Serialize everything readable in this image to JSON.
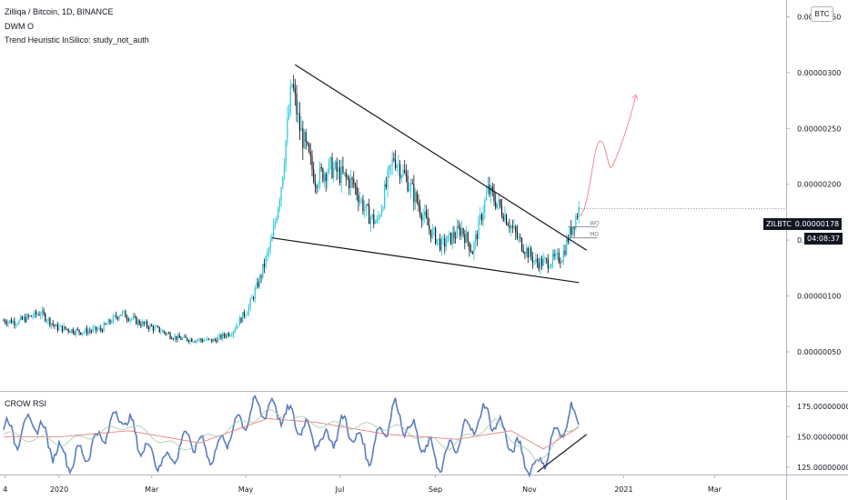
{
  "header": {
    "title": "Zilliqa / Bitcoin, 1D, BINANCE",
    "indicator_1": "DWM O",
    "indicator_2": "Trend Heuristic InSilico: study_not_auth"
  },
  "currency_badge": "BTC",
  "price_tag": {
    "symbol": "ZILBTC",
    "price": "0.00000178",
    "countdown": "04:08:37"
  },
  "rsi_panel": {
    "title": "CROW RSI"
  },
  "annotations": {
    "wo": "WO",
    "mo": "MO"
  },
  "colors": {
    "up": "#26c6da",
    "down": "#131722",
    "rsi_main": "#5a7dbf",
    "rsi_signal_red": "#e57373",
    "rsi_signal_green": "#a5c8a5",
    "forecast": "#f28b9b",
    "trendline": "#131722"
  },
  "chart_data": [
    {
      "type": "candlestick",
      "title": "Zilliqa / Bitcoin, 1D, BINANCE",
      "x_ticks": [
        "4",
        "2020",
        "Mar",
        "May",
        "Jul",
        "Sep",
        "Nov",
        "2021",
        "Mar"
      ],
      "y_ticks": [
        "0.00000350",
        "0.00000300",
        "0.00000250",
        "0.00000200",
        "0.00000150",
        "0.00000100",
        "0.00000050"
      ],
      "ylim": [
        1.5e-07,
        3.65e-06
      ],
      "series_anchors_price": [
        [
          "2019-11-26",
          7.8e-07
        ],
        [
          "2019-12-05",
          7.7e-07
        ],
        [
          "2019-12-20",
          8.5e-07
        ],
        [
          "2019-12-30",
          7.2e-07
        ],
        [
          "2020-01-15",
          6.8e-07
        ],
        [
          "2020-01-28",
          7e-07
        ],
        [
          "2020-02-10",
          8.5e-07
        ],
        [
          "2020-02-22",
          7.6e-07
        ],
        [
          "2020-03-05",
          7e-07
        ],
        [
          "2020-03-18",
          6.2e-07
        ],
        [
          "2020-04-10",
          6e-07
        ],
        [
          "2020-04-22",
          6.8e-07
        ],
        [
          "2020-05-03",
          9e-07
        ],
        [
          "2020-05-10",
          1.15e-06
        ],
        [
          "2020-05-18",
          1.5e-06
        ],
        [
          "2020-05-24",
          2e-06
        ],
        [
          "2020-05-31",
          2.9e-06
        ],
        [
          "2020-06-05",
          2.5e-06
        ],
        [
          "2020-06-15",
          2.05e-06
        ],
        [
          "2020-06-25",
          2.15e-06
        ],
        [
          "2020-07-10",
          2e-06
        ],
        [
          "2020-07-18",
          1.75e-06
        ],
        [
          "2020-07-25",
          1.65e-06
        ],
        [
          "2020-08-05",
          2.25e-06
        ],
        [
          "2020-08-15",
          2e-06
        ],
        [
          "2020-08-28",
          1.6e-06
        ],
        [
          "2020-09-05",
          1.45e-06
        ],
        [
          "2020-09-18",
          1.6e-06
        ],
        [
          "2020-09-25",
          1.4e-06
        ],
        [
          "2020-10-05",
          1.95e-06
        ],
        [
          "2020-10-15",
          1.75e-06
        ],
        [
          "2020-10-25",
          1.5e-06
        ],
        [
          "2020-11-05",
          1.3e-06
        ],
        [
          "2020-11-12",
          1.3e-06
        ],
        [
          "2020-11-22",
          1.35e-06
        ],
        [
          "2020-11-28",
          1.6e-06
        ],
        [
          "2020-12-03",
          1.78e-06
        ]
      ],
      "trendlines": [
        {
          "name": "upper",
          "from": [
            "2020-06-02",
            3.07e-06
          ],
          "to": [
            "2020-12-08",
            1.41e-06
          ]
        },
        {
          "name": "lower",
          "from": [
            "2020-05-18",
            1.52e-06
          ],
          "to": [
            "2020-12-03",
            1.12e-06
          ]
        }
      ],
      "levels": [
        {
          "label": "WO",
          "value": 1.62e-06
        },
        {
          "label": "MO",
          "value": 1.52e-06
        }
      ]
    },
    {
      "type": "line",
      "title": "CROW RSI",
      "x_ticks": [
        "4",
        "2020",
        "Mar",
        "May",
        "Jul",
        "Sep",
        "Nov",
        "2021",
        "Mar"
      ],
      "y_ticks": [
        "175.00000000",
        "150.00000000",
        "125.00000000"
      ],
      "ylim": [
        119,
        187
      ],
      "series": [
        {
          "values_anchor": [
            [
              "2019-11-26",
              158
            ],
            [
              "2019-12-05",
              150
            ],
            [
              "2019-12-15",
              165
            ],
            [
              "2019-12-28",
              140
            ],
            [
              "2020-01-10",
              130
            ],
            [
              "2020-01-25",
              145
            ],
            [
              "2020-02-10",
              170
            ],
            [
              "2020-02-25",
              140
            ],
            [
              "2020-03-10",
              128
            ],
            [
              "2020-03-25",
              150
            ],
            [
              "2020-04-10",
              135
            ],
            [
              "2020-04-25",
              160
            ],
            [
              "2020-05-10",
              175
            ],
            [
              "2020-05-25",
              170
            ],
            [
              "2020-06-05",
              160
            ],
            [
              "2020-06-20",
              145
            ],
            [
              "2020-07-05",
              160
            ],
            [
              "2020-07-20",
              135
            ],
            [
              "2020-08-05",
              172
            ],
            [
              "2020-08-20",
              150
            ],
            [
              "2020-09-05",
              128
            ],
            [
              "2020-09-20",
              155
            ],
            [
              "2020-10-05",
              170
            ],
            [
              "2020-10-20",
              145
            ],
            [
              "2020-11-05",
              122
            ],
            [
              "2020-11-18",
              150
            ],
            [
              "2020-11-28",
              168
            ],
            [
              "2020-12-03",
              165
            ]
          ]
        },
        {
          "values_anchor": [
            [
              "2019-11-26",
              150
            ],
            [
              "2020-01-01",
              150
            ],
            [
              "2020-02-15",
              155
            ],
            [
              "2020-04-01",
              145
            ],
            [
              "2020-05-15",
              165
            ],
            [
              "2020-06-15",
              162
            ],
            [
              "2020-08-01",
              152
            ],
            [
              "2020-09-15",
              148
            ],
            [
              "2020-10-20",
              155
            ],
            [
              "2020-11-10",
              140
            ],
            [
              "2020-12-03",
              158
            ]
          ]
        },
        {
          "values_anchor": [
            [
              "2019-11-26",
              152
            ],
            [
              "2020-01-05",
              145
            ],
            [
              "2020-02-15",
              160
            ],
            [
              "2020-03-20",
              140
            ],
            [
              "2020-05-15",
              170
            ],
            [
              "2020-06-20",
              160
            ],
            [
              "2020-08-05",
              158
            ],
            [
              "2020-09-10",
              142
            ],
            [
              "2020-10-10",
              162
            ],
            [
              "2020-11-05",
              130
            ],
            [
              "2020-12-03",
              162
            ]
          ]
        }
      ],
      "trendlines": [
        {
          "name": "rsi-support",
          "from": [
            "2020-11-06",
            121
          ],
          "to": [
            "2020-12-08",
            152
          ]
        }
      ]
    }
  ]
}
